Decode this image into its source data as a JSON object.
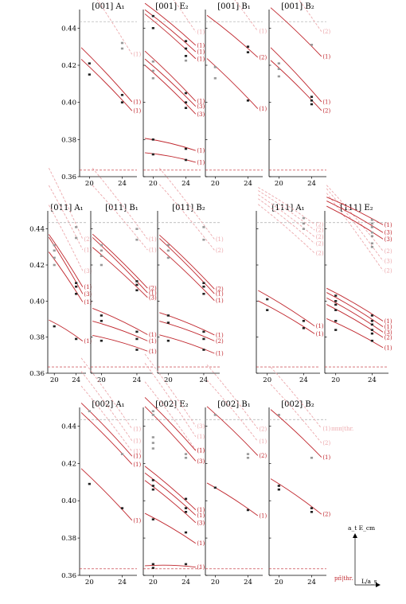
{
  "colors": {
    "curve": "#c0262d",
    "dash": "#aaaaaa",
    "faded": "#eca8ac",
    "point": "#222222",
    "faded_point": "#999999"
  },
  "threshold_label": "pπ̄|thr.",
  "threshold_label_top": "πππ|thr.",
  "axis_y_label": "a_t E_cm",
  "axis_x_label": "L/a_s",
  "chart_data": [
    {
      "type": "scatter",
      "title": "[001] A₁",
      "x": [
        20,
        24
      ],
      "ylim": [
        0.36,
        0.45
      ],
      "curves": [
        {
          "label": "(1)",
          "y0": 0.4245,
          "y1": 0.4045
        },
        {
          "label": "(1)",
          "y0": 0.4185,
          "y1": 0.3995
        }
      ],
      "faded": [
        {
          "label": "(1)",
          "y0": 0.461,
          "y1": 0.432
        }
      ],
      "points": [
        [
          20,
          0.421
        ],
        [
          20,
          0.415
        ],
        [
          24,
          0.404
        ],
        [
          24,
          0.4
        ]
      ],
      "faded_points": [
        [
          24,
          0.432
        ],
        [
          24,
          0.429
        ]
      ],
      "dash_level": 0.4435,
      "thr_level": 0.3635,
      "row": 0,
      "col": 0
    },
    {
      "type": "scatter",
      "title": "[001] E₂",
      "x": [
        20,
        24
      ],
      "ylim": [
        0.36,
        0.45
      ],
      "curves": [
        {
          "label": "(1)",
          "y0": 0.4495,
          "y1": 0.434
        },
        {
          "label": "(1)",
          "y0": 0.446,
          "y1": 0.4305
        },
        {
          "label": "(1)",
          "y0": 0.4435,
          "y1": 0.427
        },
        {
          "label": "(1)",
          "y0": 0.423,
          "y1": 0.4045
        },
        {
          "label": "(3)",
          "y0": 0.419,
          "y1": 0.4015
        },
        {
          "label": "(3)",
          "y0": 0.4155,
          "y1": 0.3975
        },
        {
          "label": "(1)",
          "y0": 0.3795,
          "y1": 0.375
        },
        {
          "label": "(1)",
          "y0": 0.372,
          "y1": 0.3685
        }
      ],
      "faded": [
        {
          "label": "(1)",
          "y0": 0.47,
          "y1": 0.4435
        }
      ],
      "points": [
        [
          20,
          0.4465
        ],
        [
          20,
          0.44
        ],
        [
          24,
          0.433
        ],
        [
          24,
          0.429
        ],
        [
          24,
          0.425
        ],
        [
          24,
          0.405
        ],
        [
          24,
          0.4
        ],
        [
          24,
          0.397
        ],
        [
          20,
          0.38
        ],
        [
          20,
          0.372
        ],
        [
          24,
          0.375
        ],
        [
          24,
          0.369
        ]
      ],
      "faded_points": [
        [
          20,
          0.422
        ],
        [
          20,
          0.417
        ],
        [
          20,
          0.413
        ],
        [
          24,
          0.4225
        ]
      ],
      "dash_level": 0.4435,
      "thr_level": 0.3635,
      "row": 0,
      "col": 1
    },
    {
      "type": "scatter",
      "title": "[001] B₁",
      "x": [
        20,
        24
      ],
      "ylim": [
        0.36,
        0.45
      ],
      "curves": [
        {
          "label": "(2)",
          "y0": 0.443,
          "y1": 0.4275
        },
        {
          "label": "(1)",
          "y0": 0.419,
          "y1": 0.4005
        }
      ],
      "faded": [
        {
          "label": "(1)",
          "y0": 0.468,
          "y1": 0.4435
        }
      ],
      "points": [
        [
          24,
          0.43
        ],
        [
          24,
          0.427
        ],
        [
          24,
          0.401
        ]
      ],
      "faded_points": [
        [
          20,
          0.419
        ],
        [
          20,
          0.413
        ]
      ],
      "dash_level": 0.4435,
      "thr_level": 0.3635,
      "row": 0,
      "col": 2
    },
    {
      "type": "scatter",
      "title": "[001] B₂",
      "x": [
        20,
        24
      ],
      "ylim": [
        0.36,
        0.45
      ],
      "curves": [
        {
          "label": "(1)",
          "y0": 0.4465,
          "y1": 0.4285
        },
        {
          "label": "(1)",
          "y0": 0.4245,
          "y1": 0.4045
        },
        {
          "label": "(2)",
          "y0": 0.418,
          "y1": 0.3995
        }
      ],
      "faded": [
        {
          "label": "(2)",
          "y0": 0.469,
          "y1": 0.4435
        }
      ],
      "points": [
        [
          24,
          0.403
        ],
        [
          24,
          0.401
        ],
        [
          24,
          0.399
        ]
      ],
      "faded_points": [
        [
          20,
          0.421
        ],
        [
          20,
          0.418
        ],
        [
          20,
          0.414
        ],
        [
          24,
          0.431
        ]
      ],
      "dash_level": 0.4435,
      "thr_level": 0.3635,
      "row": 0,
      "col": 3
    },
    {
      "type": "scatter",
      "title": "[011] A₁",
      "x": [
        20,
        24
      ],
      "ylim": [
        0.36,
        0.45
      ],
      "curves": [
        {
          "label": "(1)",
          "y0": 0.432,
          "y1": 0.412
        },
        {
          "label": "(3)",
          "y0": 0.43,
          "y1": 0.4085
        },
        {
          "label": "(1)",
          "y0": 0.4225,
          "y1": 0.4035
        },
        {
          "label": "(1)",
          "y0": 0.3875,
          "y1": 0.3795
        }
      ],
      "faded": [
        {
          "label": "(2)",
          "y0": 0.467,
          "y1": 0.44
        },
        {
          "label": "(1)",
          "y0": 0.458,
          "y1": 0.4335
        },
        {
          "label": "(3)",
          "y0": 0.447,
          "y1": 0.422
        }
      ],
      "points": [
        [
          24,
          0.41
        ],
        [
          24,
          0.408
        ],
        [
          24,
          0.404
        ],
        [
          20,
          0.386
        ],
        [
          24,
          0.379
        ]
      ],
      "faded_points": [
        [
          20,
          0.431
        ],
        [
          20,
          0.428
        ],
        [
          20,
          0.424
        ],
        [
          20,
          0.42
        ],
        [
          24,
          0.441
        ],
        [
          24,
          0.435
        ]
      ],
      "dash_level": 0.4435,
      "thr_level": 0.3635,
      "row": 1,
      "col": 0
    },
    {
      "type": "scatter",
      "title": "[011] B₁",
      "x": [
        20,
        24
      ],
      "ylim": [
        0.36,
        0.45
      ],
      "curves": [
        {
          "label": "(2)",
          "y0": 0.432,
          "y1": 0.4115
        },
        {
          "label": "(1)",
          "y0": 0.43,
          "y1": 0.409
        },
        {
          "label": "(3)",
          "y0": 0.425,
          "y1": 0.406
        },
        {
          "label": "(1)",
          "y0": 0.3935,
          "y1": 0.3835
        },
        {
          "label": "(1)",
          "y0": 0.387,
          "y1": 0.3795
        },
        {
          "label": "(1)",
          "y0": 0.3795,
          "y1": 0.3735
        }
      ],
      "faded": [
        {
          "label": "(1)",
          "y0": 0.467,
          "y1": 0.44
        },
        {
          "label": "(1)",
          "y0": 0.458,
          "y1": 0.4335
        }
      ],
      "points": [
        [
          24,
          0.411
        ],
        [
          24,
          0.409
        ],
        [
          24,
          0.406
        ],
        [
          20,
          0.392
        ],
        [
          20,
          0.389
        ],
        [
          20,
          0.378
        ],
        [
          24,
          0.383
        ],
        [
          24,
          0.379
        ],
        [
          24,
          0.373
        ]
      ],
      "faded_points": [
        [
          20,
          0.431
        ],
        [
          20,
          0.428
        ],
        [
          20,
          0.425
        ],
        [
          20,
          0.42
        ],
        [
          24,
          0.44
        ],
        [
          24,
          0.434
        ]
      ],
      "dash_level": 0.4435,
      "thr_level": 0.3635,
      "row": 1,
      "col": 1
    },
    {
      "type": "scatter",
      "title": "[011] B₂",
      "x": [
        20,
        24
      ],
      "ylim": [
        0.36,
        0.45
      ],
      "curves": [
        {
          "label": "(2)",
          "y0": 0.4315,
          "y1": 0.411
        },
        {
          "label": "(1)",
          "y0": 0.4295,
          "y1": 0.4085
        },
        {
          "label": "(1)",
          "y0": 0.4245,
          "y1": 0.4045
        },
        {
          "label": "(1)",
          "y0": 0.3915,
          "y1": 0.383
        },
        {
          "label": "(2)",
          "y0": 0.387,
          "y1": 0.3795
        },
        {
          "label": "(1)",
          "y0": 0.3795,
          "y1": 0.3725
        }
      ],
      "faded": [
        {
          "label": "(1)",
          "y0": 0.467,
          "y1": 0.44
        },
        {
          "label": "(2)",
          "y0": 0.4585,
          "y1": 0.4335
        }
      ],
      "points": [
        [
          24,
          0.41
        ],
        [
          24,
          0.408
        ],
        [
          24,
          0.404
        ],
        [
          20,
          0.392
        ],
        [
          20,
          0.388
        ],
        [
          20,
          0.378
        ],
        [
          24,
          0.383
        ],
        [
          24,
          0.379
        ],
        [
          24,
          0.373
        ]
      ],
      "faded_points": [
        [
          20,
          0.431
        ],
        [
          20,
          0.428
        ],
        [
          20,
          0.424
        ],
        [
          24,
          0.441
        ],
        [
          24,
          0.434
        ]
      ],
      "dash_level": 0.4435,
      "thr_level": 0.3635,
      "row": 1,
      "col": 2
    },
    {
      "type": "scatter",
      "title": "[111] A₁",
      "x": [
        20,
        24
      ],
      "ylim": [
        0.36,
        0.45
      ],
      "curves": [
        {
          "label": "(1)",
          "y0": 0.4025,
          "y1": 0.389
        },
        {
          "label": "(1)",
          "y0": 0.397,
          "y1": 0.3845
        }
      ],
      "faded": [
        {
          "label": "(2)",
          "y0": 0.4595,
          "y1": 0.4455
        },
        {
          "label": "(2)",
          "y0": 0.4575,
          "y1": 0.4425
        },
        {
          "label": "(2)",
          "y0": 0.455,
          "y1": 0.439
        },
        {
          "label": "(2)",
          "y0": 0.4525,
          "y1": 0.4355
        },
        {
          "label": "(2)",
          "y0": 0.449,
          "y1": 0.4305
        }
      ],
      "points": [
        [
          20,
          0.401
        ],
        [
          20,
          0.395
        ],
        [
          24,
          0.389
        ],
        [
          24,
          0.385
        ]
      ],
      "faded_points": [
        [
          24,
          0.446
        ],
        [
          24,
          0.443
        ],
        [
          24,
          0.44
        ]
      ],
      "dash_level": 0.4435,
      "thr_level": 0.3635,
      "row": 1,
      "col": 3
    },
    {
      "type": "scatter",
      "title": "[111] E₂",
      "x": [
        20,
        24
      ],
      "ylim": [
        0.36,
        0.45
      ],
      "curves": [
        {
          "label": "(1)",
          "y0": 0.455,
          "y1": 0.4445
        },
        {
          "label": "(3)",
          "y0": 0.4525,
          "y1": 0.4405
        },
        {
          "label": "(3)",
          "y0": 0.4495,
          "y1": 0.437
        },
        {
          "label": "(1)",
          "y0": 0.404,
          "y1": 0.3915
        },
        {
          "label": "(1)",
          "y0": 0.4015,
          "y1": 0.3885
        },
        {
          "label": "(3)",
          "y0": 0.3985,
          "y1": 0.3855
        },
        {
          "label": "(2)",
          "y0": 0.395,
          "y1": 0.3825
        },
        {
          "label": "(1)",
          "y0": 0.3875,
          "y1": 0.3765
        }
      ],
      "faded": [
        {
          "label": "(2)",
          "y0": 0.458,
          "y1": 0.433
        },
        {
          "label": "(3)",
          "y0": 0.4555,
          "y1": 0.428
        },
        {
          "label": "(2)",
          "y0": 0.4525,
          "y1": 0.423
        }
      ],
      "points": [
        [
          20,
          0.403
        ],
        [
          20,
          0.4
        ],
        [
          20,
          0.398
        ],
        [
          20,
          0.395
        ],
        [
          20,
          0.389
        ],
        [
          20,
          0.384
        ],
        [
          24,
          0.392
        ],
        [
          24,
          0.389
        ],
        [
          24,
          0.387
        ],
        [
          24,
          0.384
        ],
        [
          24,
          0.382
        ],
        [
          24,
          0.378
        ]
      ],
      "faded_points": [
        [
          24,
          0.445
        ],
        [
          24,
          0.443
        ],
        [
          24,
          0.441
        ],
        [
          24,
          0.438
        ],
        [
          24,
          0.436
        ],
        [
          24,
          0.432
        ],
        [
          24,
          0.43
        ]
      ],
      "dash_level": 0.4435,
      "thr_level": 0.3635,
      "row": 1,
      "col": 4
    },
    {
      "type": "scatter",
      "title": "[002] A₁",
      "x": [
        20,
        24
      ],
      "ylim": [
        0.36,
        0.45
      ],
      "curves": [
        {
          "label": "(1)",
          "y0": 0.4475,
          "y1": 0.428
        },
        {
          "label": "(1)",
          "y0": 0.4425,
          "y1": 0.4235
        },
        {
          "label": "(1)",
          "y0": 0.4125,
          "y1": 0.3935
        }
      ],
      "faded": [
        {
          "label": "(1)",
          "y0": 0.47,
          "y1": 0.444
        },
        {
          "label": "(1)",
          "y0": 0.463,
          "y1": 0.4375
        },
        {
          "label": "(1)",
          "y0": 0.4555,
          "y1": 0.4315
        }
      ],
      "points": [
        [
          20,
          0.409
        ],
        [
          24,
          0.396
        ]
      ],
      "faded_points": [
        [
          20,
          0.448
        ],
        [
          24,
          0.425
        ]
      ],
      "dash_level": 0.4435,
      "thr_level": 0.3635,
      "row": 2,
      "col": 0
    },
    {
      "type": "scatter",
      "title": "[002] E₂",
      "x": [
        20,
        24
      ],
      "ylim": [
        0.36,
        0.45
      ],
      "curves": [
        {
          "label": "(1)",
          "y0": 0.4505,
          "y1": 0.431
        },
        {
          "label": "(3)",
          "y0": 0.4455,
          "y1": 0.4255
        },
        {
          "label": "(1)",
          "y0": 0.4145,
          "y1": 0.3985
        },
        {
          "label": "(1)",
          "y0": 0.411,
          "y1": 0.3955
        },
        {
          "label": "(3)",
          "y0": 0.407,
          "y1": 0.3915
        },
        {
          "label": "(1)",
          "y0": 0.3905,
          "y1": 0.3795
        },
        {
          "label": "(1)",
          "y0": 0.365,
          "y1": 0.3645
        }
      ],
      "faded": [
        {
          "label": "(3)",
          "y0": 0.472,
          "y1": 0.4455
        },
        {
          "label": "(1)",
          "y0": 0.467,
          "y1": 0.44
        },
        {
          "label": "(1)",
          "y0": 0.4575,
          "y1": 0.4325
        }
      ],
      "points": [
        [
          20,
          0.411
        ],
        [
          20,
          0.408
        ],
        [
          20,
          0.406
        ],
        [
          24,
          0.401
        ],
        [
          24,
          0.396
        ],
        [
          24,
          0.394
        ],
        [
          20,
          0.39
        ],
        [
          24,
          0.383
        ],
        [
          20,
          0.366
        ],
        [
          20,
          0.364
        ],
        [
          24,
          0.366
        ]
      ],
      "faded_points": [
        [
          20,
          0.448
        ],
        [
          20,
          0.446
        ],
        [
          20,
          0.434
        ],
        [
          20,
          0.431
        ],
        [
          20,
          0.428
        ],
        [
          24,
          0.425
        ],
        [
          24,
          0.423
        ]
      ],
      "dash_level": 0.4435,
      "thr_level": 0.3635,
      "row": 2,
      "col": 1
    },
    {
      "type": "scatter",
      "title": "[002] B₁",
      "x": [
        20,
        24
      ],
      "ylim": [
        0.36,
        0.45
      ],
      "curves": [
        {
          "label": "(2)",
          "y0": 0.446,
          "y1": 0.428
        },
        {
          "label": "(1)",
          "y0": 0.4065,
          "y1": 0.3945
        }
      ],
      "faded": [
        {
          "label": "(2)",
          "y0": 0.467,
          "y1": 0.4435
        },
        {
          "label": "(1)",
          "y0": 0.459,
          "y1": 0.4365
        }
      ],
      "points": [
        [
          20,
          0.407
        ],
        [
          24,
          0.395
        ]
      ],
      "faded_points": [
        [
          20,
          0.446
        ],
        [
          24,
          0.425
        ],
        [
          24,
          0.423
        ]
      ],
      "dash_level": 0.4435,
      "thr_level": 0.3635,
      "row": 2,
      "col": 2
    },
    {
      "type": "scatter",
      "title": "[002] B₂",
      "x": [
        20,
        24
      ],
      "ylim": [
        0.36,
        0.45
      ],
      "curves": [
        {
          "label": "(1)",
          "y0": 0.4445,
          "y1": 0.427
        },
        {
          "label": "(2)",
          "y0": 0.4085,
          "y1": 0.3955
        }
      ],
      "faded": [
        {
          "label": "(1)",
          "y0": 0.466,
          "y1": 0.4435
        },
        {
          "label": "(2)",
          "y0": 0.457,
          "y1": 0.4355
        }
      ],
      "points": [
        [
          20,
          0.408
        ],
        [
          20,
          0.406
        ],
        [
          24,
          0.396
        ],
        [
          24,
          0.394
        ]
      ],
      "faded_points": [
        [
          20,
          0.446
        ],
        [
          24,
          0.423
        ]
      ],
      "dash_level": 0.4435,
      "thr_level": 0.3635,
      "row": 2,
      "col": 3
    }
  ]
}
